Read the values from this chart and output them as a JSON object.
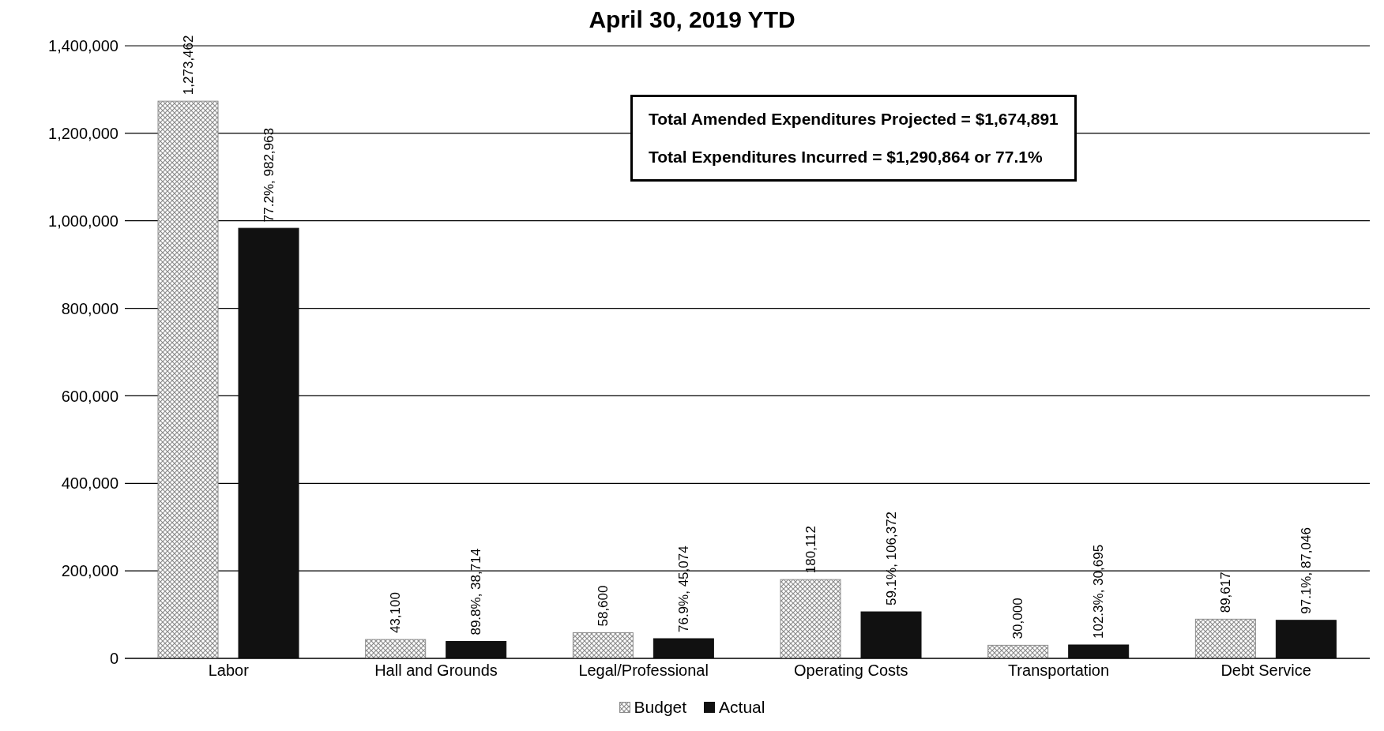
{
  "chart_data": {
    "type": "bar",
    "title": "April 30, 2019 YTD",
    "categories": [
      "Labor",
      "Hall and Grounds",
      "Legal/Professional",
      "Operating Costs",
      "Transportation",
      "Debt Service"
    ],
    "series": [
      {
        "name": "Budget",
        "color": "#8c8c8c",
        "values": [
          1273462,
          43100,
          58600,
          180112,
          30000,
          89617
        ],
        "value_labels": [
          "1,273,462",
          "43,100",
          "58,600",
          "180,112",
          "30,000",
          "89,617"
        ]
      },
      {
        "name": "Actual",
        "color": "#111111",
        "values": [
          982963,
          38714,
          45074,
          106372,
          30695,
          87046
        ],
        "value_labels": [
          "77.2%, 982,963",
          "89.8%, 38,714",
          "76.9%, 45,074",
          "59.1%, 106,372",
          "102.3%, 30,695",
          "97.1%, 87,046"
        ]
      }
    ],
    "ylim": [
      0,
      1400000
    ],
    "yticks": [
      {
        "value": 0,
        "label": "0"
      },
      {
        "value": 200000,
        "label": "200,000"
      },
      {
        "value": 400000,
        "label": "400,000"
      },
      {
        "value": 600000,
        "label": "600,000"
      },
      {
        "value": 800000,
        "label": "800,000"
      },
      {
        "value": 1000000,
        "label": "1,000,000"
      },
      {
        "value": 1200000,
        "label": "1,200,000"
      },
      {
        "value": 1400000,
        "label": "1,400,000"
      }
    ],
    "grid": "y",
    "legend": "bottom",
    "annotations": [
      "Total Amended Expenditures Projected = $1,674,891",
      "Total Expenditures Incurred = $1,290,864 or 77.1%"
    ]
  }
}
